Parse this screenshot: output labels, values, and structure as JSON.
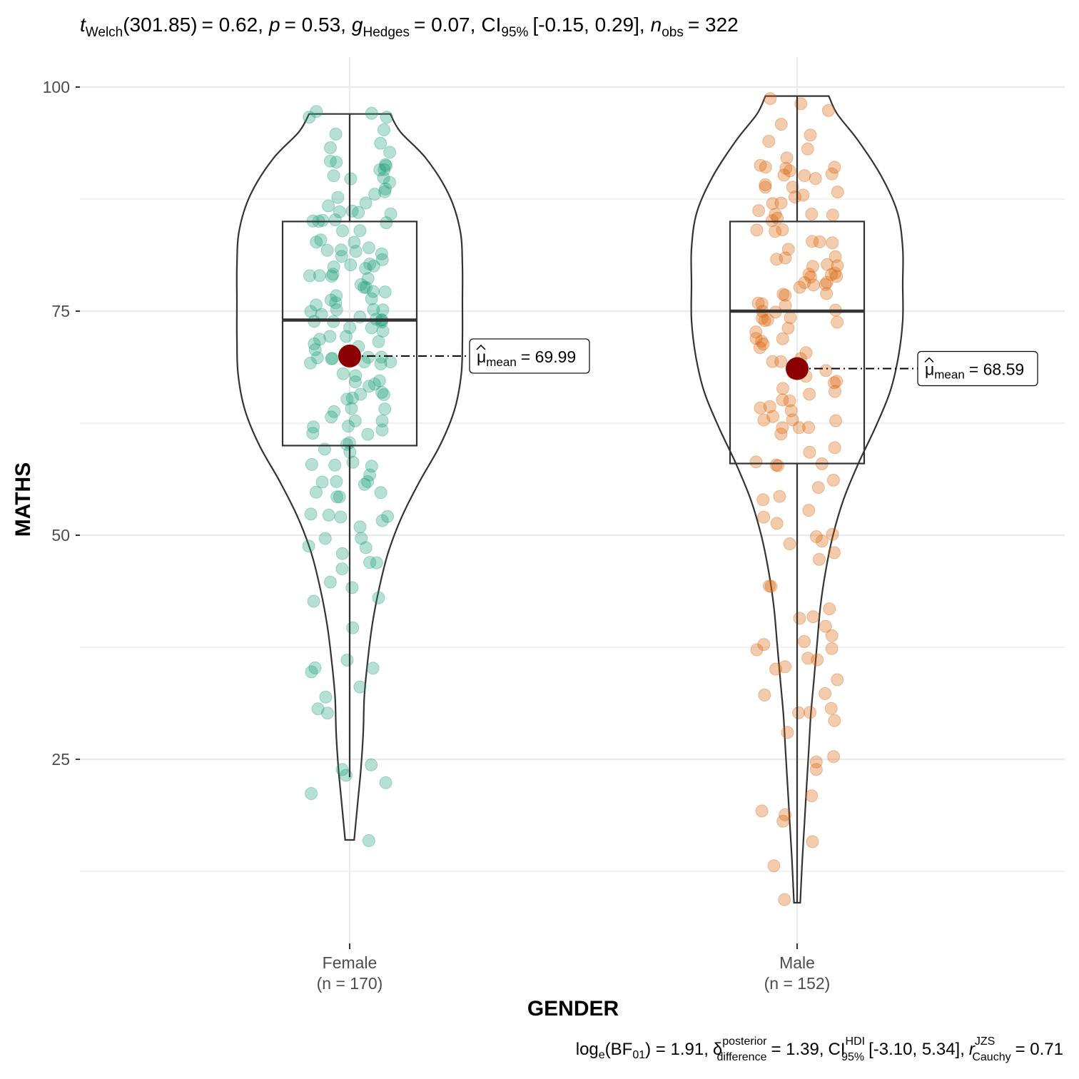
{
  "chart_data": {
    "type": "violin-box-scatter",
    "xlabel": "GENDER",
    "ylabel": "MATHS",
    "ylim": [
      5,
      103
    ],
    "yticks": [
      25,
      50,
      75,
      100
    ],
    "y_minor_gridlines": [
      12.5,
      37.5,
      62.5,
      87.5
    ],
    "grid": true,
    "subtitle_parts": {
      "t_sym": "t",
      "t_sub": "Welch",
      "df": "(301.85)",
      "t_value": "= 0.62,",
      "p_sym": "p",
      "p_value": "= 0.53,",
      "g_sym": "g",
      "g_sub": "Hedges",
      "g_value": "= 0.07,",
      "ci": "CI",
      "ci_sub": "95%",
      "ci_value": "[-0.15, 0.29],",
      "n_sym": "n",
      "n_sub": "obs",
      "n_value": "= 322"
    },
    "caption_parts": {
      "log": "log",
      "log_sub": "e",
      "bf": "(BF",
      "bf_sub": "01",
      "bf_value": ") = 1.91,",
      "delta": "δ",
      "delta_sup": "posterior",
      "delta_sub": "difference",
      "delta_value": "= 1.39,",
      "ci": "CI",
      "ci_sup": "HDI",
      "ci_sub": "95%",
      "ci_value": "[-3.10, 5.34],",
      "r_sym": "r",
      "r_sup": "JZS",
      "r_sub": "Cauchy",
      "r_value": "= 0.71"
    },
    "groups": [
      {
        "name": "Female",
        "n_label": "(n = 170)",
        "color": "#1b9e77",
        "mean": 69.99,
        "mean_label_sym": "μ",
        "mean_label_sub": "mean",
        "mean_label_value": "= 69.99",
        "box": {
          "min": 23,
          "q1": 60,
          "median": 74,
          "q3": 85,
          "max": 97
        },
        "violin_range": [
          16,
          97
        ],
        "violin_profile": [
          [
            16,
            0.04
          ],
          [
            20,
            0.07
          ],
          [
            24,
            0.1
          ],
          [
            28,
            0.12
          ],
          [
            32,
            0.13
          ],
          [
            36,
            0.16
          ],
          [
            40,
            0.2
          ],
          [
            44,
            0.26
          ],
          [
            48,
            0.34
          ],
          [
            52,
            0.46
          ],
          [
            56,
            0.62
          ],
          [
            60,
            0.8
          ],
          [
            64,
            0.93
          ],
          [
            68,
            0.99
          ],
          [
            72,
            1.0
          ],
          [
            76,
            1.0
          ],
          [
            80,
            1.0
          ],
          [
            84,
            0.98
          ],
          [
            88,
            0.88
          ],
          [
            92,
            0.68
          ],
          [
            95,
            0.45
          ],
          [
            97,
            0.36
          ]
        ],
        "points": [
          97,
          97,
          97,
          97,
          95,
          95,
          93,
          93,
          92,
          92,
          91,
          91,
          91,
          90,
          90,
          90,
          89,
          89,
          88,
          88,
          87,
          87,
          86,
          86,
          86,
          86,
          85,
          85,
          85,
          85,
          85,
          84,
          83,
          83,
          83,
          82,
          82,
          82,
          82,
          81,
          81,
          81,
          80,
          80,
          80,
          80,
          79,
          79,
          79,
          79,
          79,
          78,
          78,
          78,
          77,
          77,
          77,
          76,
          76,
          76,
          76,
          75,
          75,
          75,
          75,
          75,
          74,
          74,
          74,
          74,
          74,
          74,
          73,
          73,
          73,
          72,
          72,
          72,
          72,
          71,
          71,
          71,
          70,
          70,
          70,
          70,
          70,
          70,
          69,
          69,
          69,
          68,
          68,
          67,
          67,
          67,
          67,
          66,
          66,
          65,
          65,
          64,
          64,
          64,
          63,
          63,
          63,
          62,
          62,
          62,
          61,
          61,
          60,
          60,
          59,
          58,
          58,
          58,
          57,
          56,
          56,
          56,
          55,
          55,
          54,
          54,
          52,
          52,
          52,
          52,
          51,
          50,
          50,
          49,
          49,
          48,
          47,
          47,
          46,
          45,
          44,
          43,
          43,
          40,
          36,
          35,
          35,
          35,
          33,
          32,
          31,
          30,
          24,
          24,
          23,
          22,
          21,
          16,
          52,
          56,
          58,
          66,
          69,
          74,
          80,
          84,
          88,
          91,
          94,
          60
        ]
      },
      {
        "name": "Male",
        "n_label": "(n = 152)",
        "color": "#d95f02",
        "mean": 68.59,
        "mean_label_sym": "μ",
        "mean_label_sub": "mean",
        "mean_label_value": "= 68.59",
        "box": {
          "min": 9,
          "q1": 58,
          "median": 75,
          "q3": 85,
          "max": 99
        },
        "violin_range": [
          9,
          99
        ],
        "violin_profile": [
          [
            9,
            0.03
          ],
          [
            14,
            0.05
          ],
          [
            18,
            0.07
          ],
          [
            22,
            0.09
          ],
          [
            26,
            0.11
          ],
          [
            30,
            0.13
          ],
          [
            34,
            0.16
          ],
          [
            38,
            0.19
          ],
          [
            42,
            0.22
          ],
          [
            46,
            0.27
          ],
          [
            50,
            0.34
          ],
          [
            54,
            0.44
          ],
          [
            58,
            0.58
          ],
          [
            62,
            0.74
          ],
          [
            66,
            0.88
          ],
          [
            70,
            0.96
          ],
          [
            74,
            1.0
          ],
          [
            78,
            1.0
          ],
          [
            82,
            1.0
          ],
          [
            86,
            0.95
          ],
          [
            90,
            0.8
          ],
          [
            94,
            0.58
          ],
          [
            97,
            0.38
          ],
          [
            99,
            0.3
          ]
        ],
        "points": [
          99,
          98,
          97,
          96,
          95,
          94,
          93,
          92,
          91,
          91,
          91,
          91,
          91,
          90,
          90,
          90,
          89,
          89,
          89,
          88,
          88,
          88,
          87,
          87,
          86,
          86,
          86,
          85,
          85,
          84,
          84,
          84,
          83,
          83,
          83,
          82,
          81,
          81,
          80,
          80,
          80,
          79,
          79,
          79,
          79,
          79,
          78,
          78,
          78,
          78,
          77,
          77,
          77,
          76,
          76,
          75,
          75,
          75,
          74,
          74,
          74,
          74,
          73,
          73,
          72,
          72,
          71,
          71,
          70,
          69,
          69,
          68,
          68,
          68,
          67,
          67,
          66,
          66,
          65,
          65,
          64,
          64,
          64,
          63,
          63,
          63,
          63,
          62,
          62,
          61,
          60,
          59,
          58,
          58,
          58,
          56,
          55,
          54,
          54,
          53,
          52,
          51,
          50,
          50,
          49,
          49,
          48,
          44,
          44,
          42,
          41,
          41,
          40,
          39,
          38,
          38,
          37,
          37,
          36,
          36,
          35,
          34,
          32,
          32,
          31,
          30,
          30,
          29,
          25,
          25,
          24,
          21,
          19,
          19,
          18,
          16,
          13,
          9,
          66,
          70,
          76,
          78,
          81,
          86,
          90,
          72,
          74,
          62,
          58,
          47,
          35,
          28
        ]
      }
    ]
  }
}
